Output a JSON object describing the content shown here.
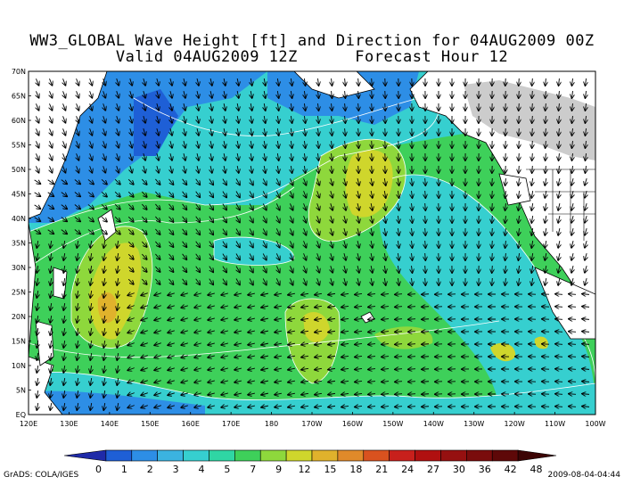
{
  "title": {
    "line1": "WW3_GLOBAL Wave Height [ft] and Direction for 04AUG2009 00Z",
    "line2": "Valid 04AUG2009 12Z      Forecast Hour 12"
  },
  "axes": {
    "lat_labels": [
      "EQ",
      "5N",
      "10N",
      "15N",
      "20N",
      "25N",
      "30N",
      "35N",
      "40N",
      "45N",
      "50N",
      "55N",
      "60N",
      "65N",
      "70N"
    ],
    "lon_labels": [
      "120E",
      "130E",
      "140E",
      "150E",
      "160E",
      "170E",
      "180",
      "170W",
      "160W",
      "150W",
      "140W",
      "130W",
      "120W",
      "110W",
      "100W"
    ]
  },
  "colorbar": {
    "labels": [
      "0",
      "1",
      "2",
      "3",
      "4",
      "5",
      "7",
      "9",
      "12",
      "15",
      "18",
      "21",
      "24",
      "27",
      "30",
      "36",
      "42",
      "48"
    ],
    "colors": [
      "#1f2aa8",
      "#1e5fd6",
      "#2d8ee6",
      "#3bb3e0",
      "#36cfcf",
      "#2fd6a4",
      "#3ed05a",
      "#8ed83c",
      "#cfd62c",
      "#e0b22c",
      "#e08a2a",
      "#d9521f",
      "#c8201c",
      "#b01010",
      "#961010",
      "#7a0c0c",
      "#5e0808",
      "#3c0404"
    ]
  },
  "map": {
    "land_color": "#ffffff",
    "ocean_colors": {
      "low": "#2d8ee6",
      "mid": "#36cfcf",
      "high": "#3ed05a",
      "peak": "#cfd62c",
      "max": "#e0b22c"
    }
  },
  "footer": {
    "left": "GrADS: COLA/IGES",
    "right": "2009-08-04-04:44"
  }
}
